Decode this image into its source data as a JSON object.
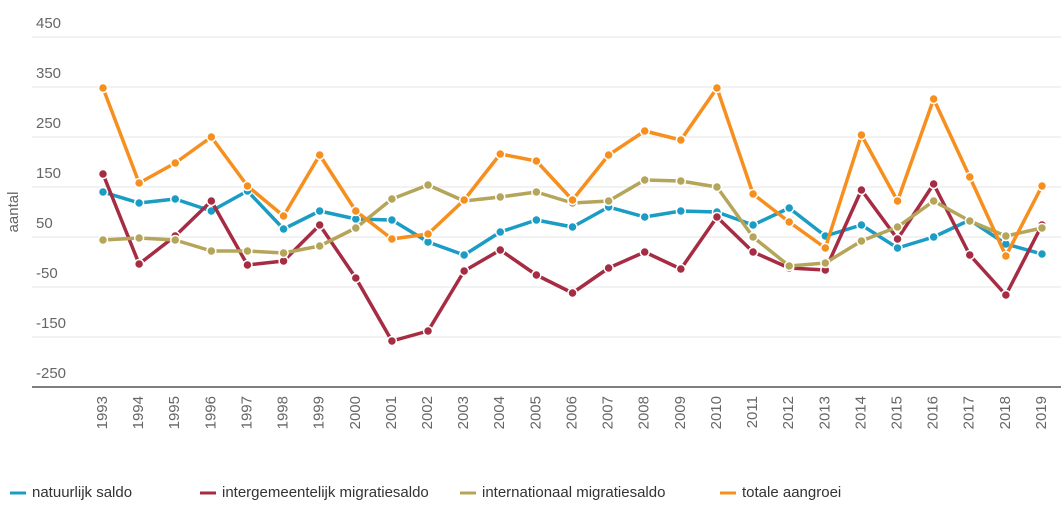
{
  "chart_data": {
    "type": "line",
    "ylabel": "aantal",
    "categories": [
      "1993",
      "1994",
      "1995",
      "1996",
      "1997",
      "1998",
      "1999",
      "2000",
      "2001",
      "2002",
      "2003",
      "2004",
      "2005",
      "2006",
      "2007",
      "2008",
      "2009",
      "2010",
      "2011",
      "2012",
      "2013",
      "2014",
      "2015",
      "2016",
      "2017",
      "2018",
      "2019"
    ],
    "series": [
      {
        "name": "natuurlijk saldo",
        "color": "#1a9cc4",
        "values": [
          140,
          118,
          126,
          102,
          142,
          66,
          102,
          86,
          84,
          40,
          14,
          60,
          84,
          70,
          110,
          90,
          102,
          100,
          74,
          108,
          52,
          74,
          28,
          50,
          84,
          36,
          16
        ]
      },
      {
        "name": "intergemeentelijk migratiesaldo",
        "color": "#a62c43",
        "values": [
          176,
          -4,
          52,
          122,
          -6,
          2,
          74,
          -32,
          -158,
          -138,
          -18,
          24,
          -26,
          -62,
          -12,
          20,
          -14,
          90,
          20,
          -12,
          -16,
          144,
          46,
          156,
          14,
          -66,
          74
        ]
      },
      {
        "name": "internationaal migratiesaldo",
        "color": "#b5a55a",
        "values": [
          44,
          48,
          44,
          22,
          22,
          18,
          32,
          68,
          126,
          154,
          122,
          130,
          140,
          118,
          122,
          164,
          162,
          150,
          50,
          -8,
          -2,
          42,
          70,
          122,
          82,
          52,
          68
        ]
      },
      {
        "name": "totale aangroei",
        "color": "#f78f1e",
        "values": [
          348,
          158,
          198,
          250,
          152,
          92,
          214,
          102,
          46,
          56,
          124,
          216,
          202,
          124,
          214,
          262,
          244,
          348,
          136,
          80,
          28,
          254,
          122,
          326,
          170,
          12,
          152
        ]
      }
    ],
    "ylim": [
      -250,
      450
    ],
    "yticks": [
      -250,
      -150,
      -50,
      50,
      150,
      250,
      350,
      450
    ],
    "grid": true,
    "legend": "bottom"
  }
}
